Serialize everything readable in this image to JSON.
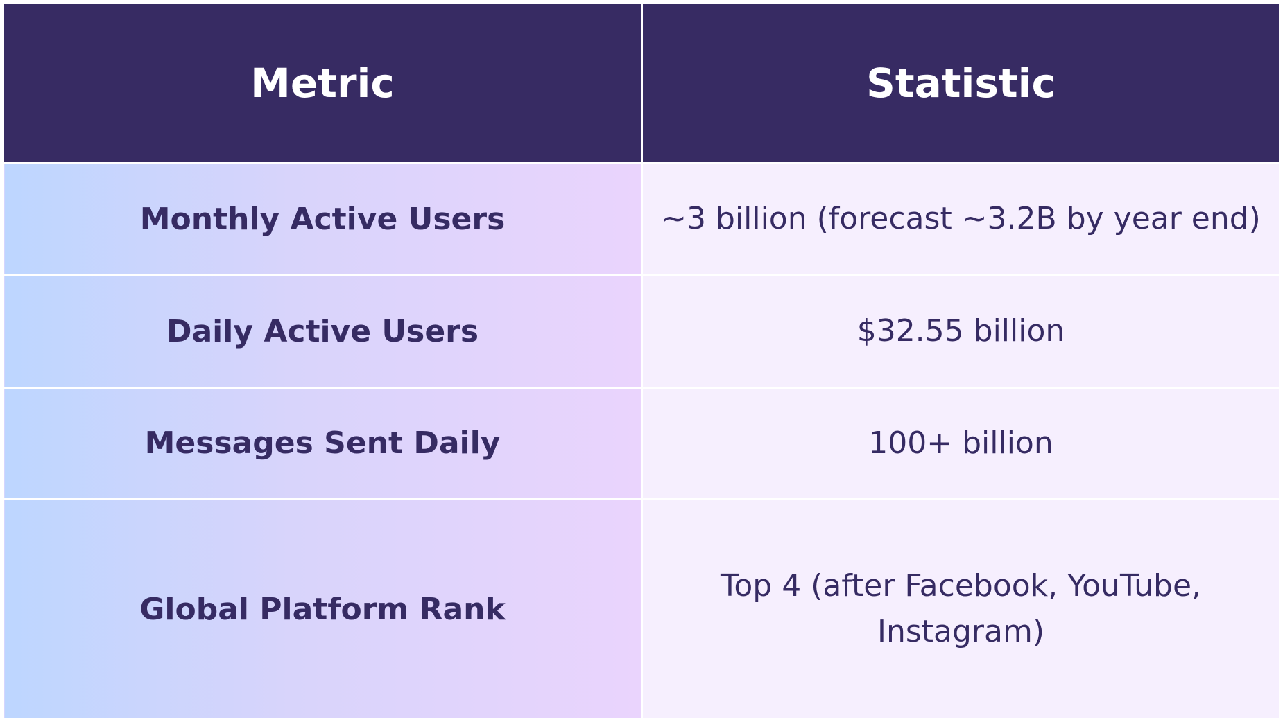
{
  "headers": {
    "metric": "Metric",
    "statistic": "Statistic"
  },
  "rows": [
    {
      "metric": "Monthly Active Users",
      "statistic": "~3 billion (forecast ~3.2B by year end)"
    },
    {
      "metric": "Daily Active Users",
      "statistic": "$32.55 billion"
    },
    {
      "metric": "Messages Sent Daily",
      "statistic": "100+ billion"
    },
    {
      "metric": "Global Platform Rank",
      "statistic": "Top 4 (after Facebook, YouTube, Instagram)"
    }
  ],
  "colors": {
    "header": "#372b63",
    "text": "#362b63",
    "stat_bg": "#f6effe"
  }
}
